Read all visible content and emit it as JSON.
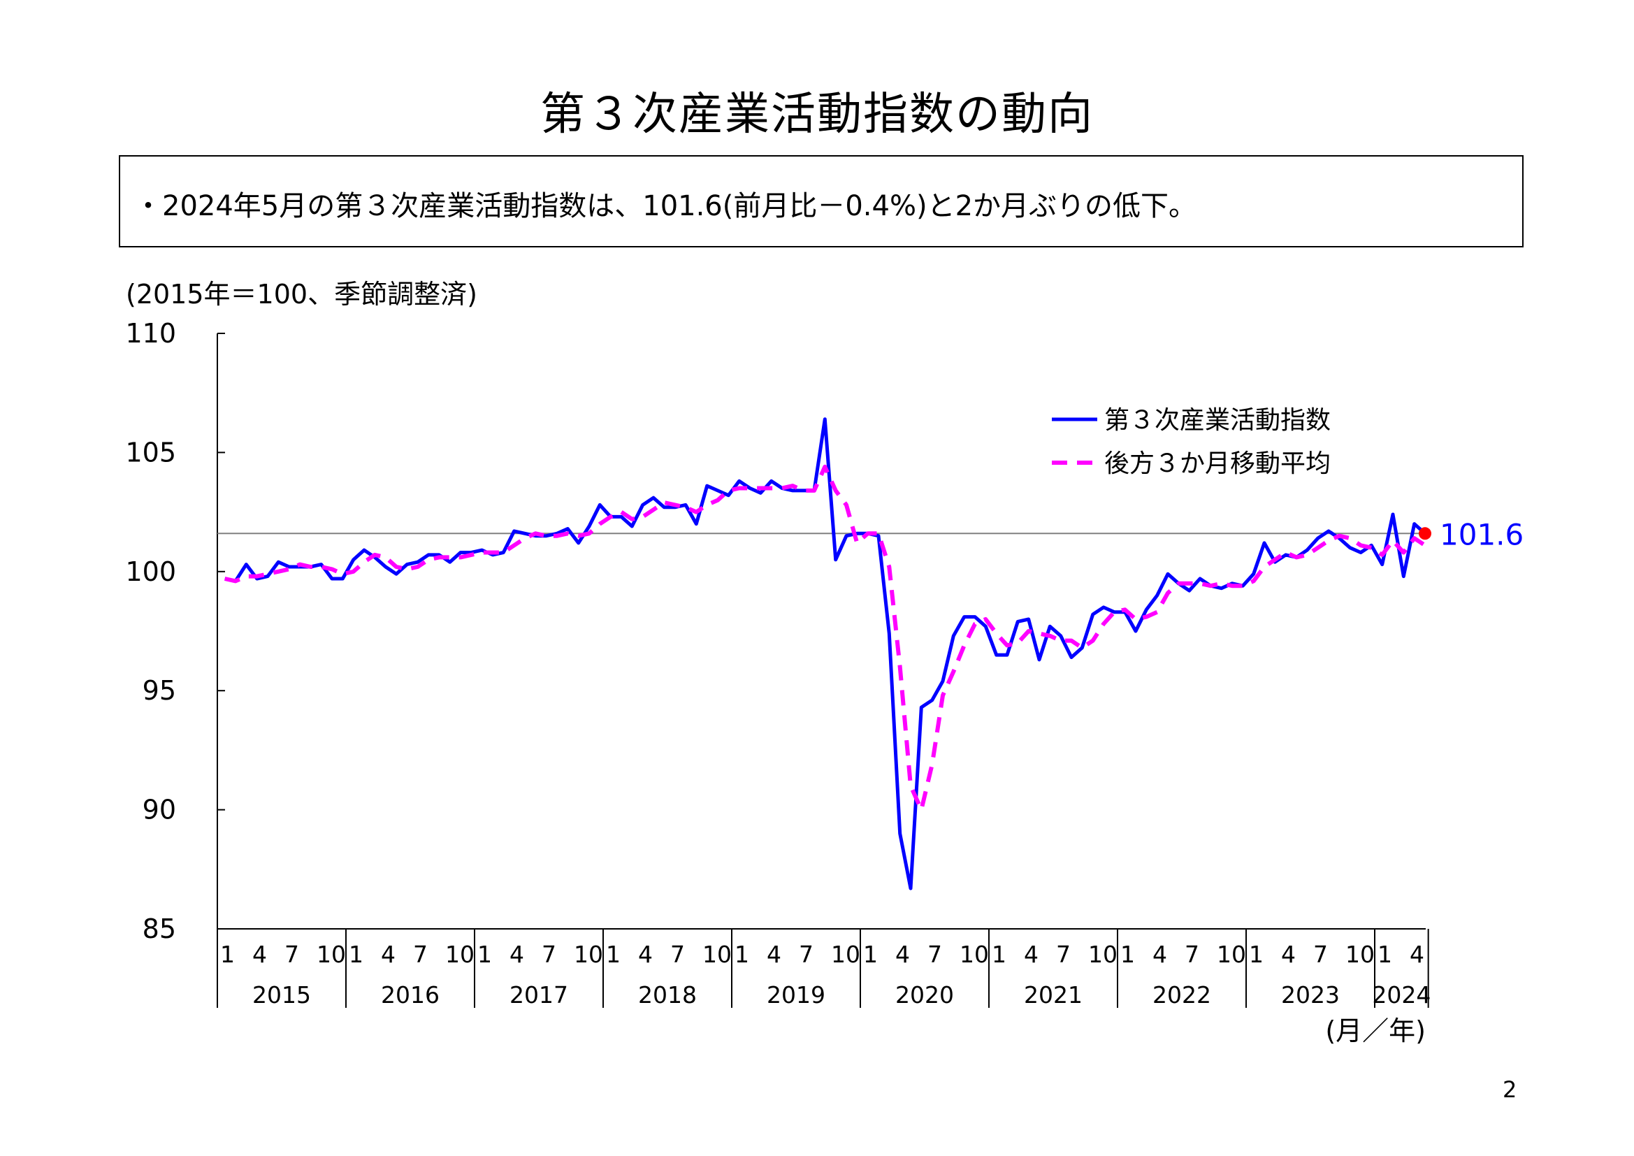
{
  "page": {
    "title": "第３次産業活動指数の動向",
    "summary": "・2024年5月の第３次産業活動指数は、101.6(前月比－0.4%)と2か月ぶりの低下。",
    "unit_note": "(2015年＝100、季節調整済)",
    "page_number": "2"
  },
  "chart_data": {
    "type": "line",
    "title": "",
    "xlabel": "(月／年)",
    "ylabel": "",
    "ylim": [
      85,
      110
    ],
    "yticks": [
      85,
      90,
      95,
      100,
      105,
      110
    ],
    "month_tick_labels": [
      "1",
      "4",
      "7",
      "10"
    ],
    "years": [
      "2015",
      "2016",
      "2017",
      "2018",
      "2019",
      "2020",
      "2021",
      "2022",
      "2023",
      "2024"
    ],
    "start": "2015-01",
    "end": "2024-05",
    "grid": false,
    "legend_position": "top-right",
    "reference_line": {
      "value": 101.6,
      "label": "101.6",
      "color": "#808080"
    },
    "latest_point": {
      "date": "2024-05",
      "value": 101.6,
      "color": "#ff0000"
    },
    "colors": {
      "index": "#0000ff",
      "moving_average": "#ff00ff",
      "label": "#0000ff"
    },
    "series": [
      {
        "name": "第３次産業活動指数",
        "style": "solid",
        "values": [
          99.7,
          99.6,
          100.3,
          99.7,
          99.8,
          100.4,
          100.2,
          100.2,
          100.2,
          100.3,
          99.7,
          99.7,
          100.5,
          100.9,
          100.6,
          100.2,
          99.9,
          100.3,
          100.4,
          100.7,
          100.7,
          100.4,
          100.8,
          100.8,
          100.9,
          100.7,
          100.8,
          101.7,
          101.6,
          101.5,
          101.5,
          101.6,
          101.8,
          101.2,
          101.9,
          102.8,
          102.3,
          102.3,
          101.9,
          102.8,
          103.1,
          102.7,
          102.7,
          102.8,
          102.0,
          103.6,
          103.4,
          103.2,
          103.8,
          103.5,
          103.3,
          103.8,
          103.5,
          103.4,
          103.4,
          103.4,
          106.4,
          100.5,
          101.5,
          101.6,
          101.6,
          101.5,
          97.4,
          89.0,
          86.7,
          94.3,
          94.6,
          95.4,
          97.3,
          98.1,
          98.1,
          97.7,
          96.5,
          96.5,
          97.9,
          98.0,
          96.3,
          97.7,
          97.3,
          96.4,
          96.8,
          98.2,
          98.5,
          98.3,
          98.3,
          97.5,
          98.4,
          99.0,
          99.9,
          99.5,
          99.2,
          99.7,
          99.4,
          99.3,
          99.5,
          99.4,
          99.9,
          101.2,
          100.4,
          100.7,
          100.6,
          100.9,
          101.4,
          101.7,
          101.4,
          101.0,
          100.8,
          101.1,
          100.3,
          102.4,
          99.8,
          102.0,
          101.6
        ]
      },
      {
        "name": "後方３か月移動平均",
        "style": "dashed",
        "values": [
          99.7,
          99.6,
          99.8,
          99.8,
          99.9,
          100.0,
          100.1,
          100.3,
          100.2,
          100.2,
          100.1,
          99.9,
          100.0,
          100.4,
          100.7,
          100.6,
          100.2,
          100.1,
          100.2,
          100.5,
          100.6,
          100.6,
          100.6,
          100.7,
          100.8,
          100.8,
          100.8,
          101.1,
          101.4,
          101.6,
          101.5,
          101.5,
          101.6,
          101.5,
          101.6,
          102.0,
          102.3,
          102.5,
          102.2,
          102.3,
          102.6,
          102.9,
          102.8,
          102.7,
          102.5,
          102.8,
          103.0,
          103.4,
          103.5,
          103.5,
          103.5,
          103.5,
          103.5,
          103.6,
          103.4,
          103.4,
          104.4,
          103.4,
          102.8,
          101.2,
          101.6,
          101.6,
          100.2,
          96.0,
          91.0,
          90.0,
          91.9,
          94.8,
          95.8,
          96.9,
          97.8,
          98.0,
          97.4,
          96.9,
          97.0,
          97.5,
          97.4,
          97.3,
          97.1,
          97.1,
          96.8,
          97.1,
          97.8,
          98.3,
          98.4,
          98.0,
          98.1,
          98.3,
          99.1,
          99.5,
          99.5,
          99.5,
          99.4,
          99.5,
          99.4,
          99.4,
          99.6,
          100.2,
          100.5,
          100.8,
          100.6,
          100.7,
          101.0,
          101.3,
          101.5,
          101.4,
          101.1,
          101.0,
          100.7,
          101.3,
          100.8,
          101.4,
          101.1
        ]
      }
    ]
  }
}
